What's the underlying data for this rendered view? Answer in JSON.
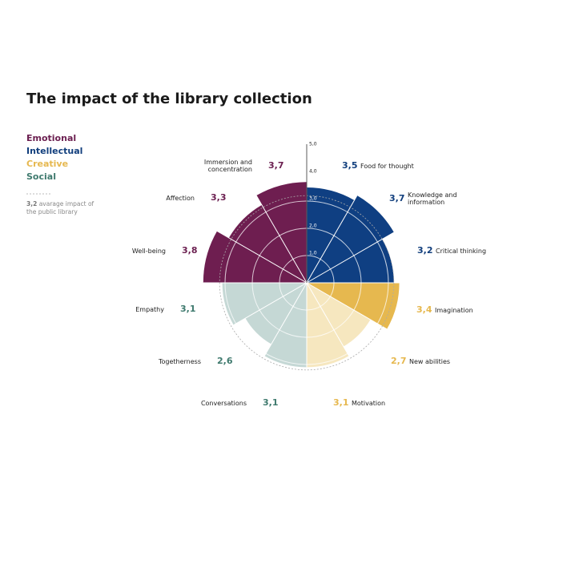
{
  "chart_data": {
    "type": "polar_area",
    "title": "The impact of the library collection",
    "groups": [
      {
        "name": "Emotional",
        "color": "#6b1f50"
      },
      {
        "name": "Intellectual",
        "color": "#123f7d"
      },
      {
        "name": "Creative",
        "color": "#e6b84f"
      },
      {
        "name": "Social",
        "color": "#3f7a6e"
      }
    ],
    "categories": [
      "Food for thought",
      "Knowledge and information",
      "Critical thinking",
      "Imagination",
      "New abilities",
      "Motivation",
      "Conversations",
      "Togetherness",
      "Empathy",
      "Well-being",
      "Affection",
      "Immersion and concentration"
    ],
    "values": [
      3.5,
      3.7,
      3.2,
      3.4,
      2.7,
      3.1,
      3.1,
      2.6,
      3.1,
      3.8,
      3.3,
      3.7
    ],
    "value_labels": [
      "3,5",
      "3,7",
      "3,2",
      "3,4",
      "2,7",
      "3,1",
      "3,1",
      "2,6",
      "3,1",
      "3,8",
      "3,3",
      "3,7"
    ],
    "category_group": [
      1,
      1,
      1,
      2,
      2,
      2,
      3,
      3,
      3,
      0,
      0,
      0
    ],
    "fills": [
      "#0f3f82",
      "#0f3f82",
      "#0f3f82",
      "#e6b84f",
      "#f6e7bf",
      "#f6e7bf",
      "#c5d8d5",
      "#c5d8d5",
      "#c5d8d5",
      "#6e1e50",
      "#6e1e50",
      "#6e1e50"
    ],
    "rlim": [
      0,
      5
    ],
    "rticks": [
      {
        "value": 1,
        "label": "1,0"
      },
      {
        "value": 2,
        "label": "2,0"
      },
      {
        "value": 3,
        "label": "3,0"
      },
      {
        "value": 4,
        "label": "4,0"
      },
      {
        "value": 5,
        "label": "5,0"
      }
    ],
    "average": 3.2,
    "average_label": "3,2",
    "average_text": "avarage impact of the public library"
  }
}
